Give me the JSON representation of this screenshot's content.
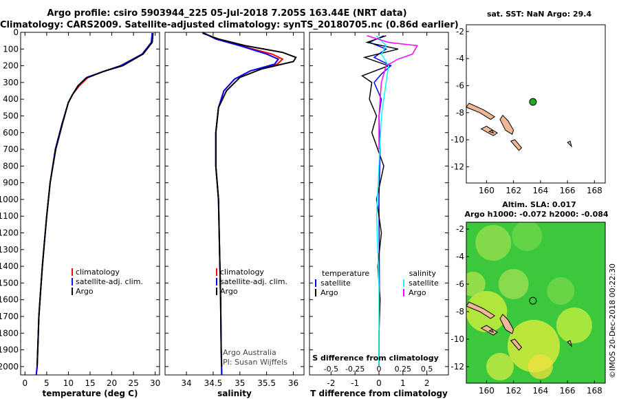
{
  "header": {
    "title_line1": "Argo profile: csiro 5903944_225 05-Jul-2018 7.205S 163.44E (NRT data)",
    "title_line2": "Climatology: CARS2009. Satellite-adjusted climatology: synTS_20180705.nc (0.86d earlier)"
  },
  "credit": "©IMOS 20-Dec-2018 00:22:30",
  "colors": {
    "climatology": "#ff0000",
    "satellite": "#0000ff",
    "argo": "#000000",
    "sat_sal": "#00ffff",
    "argo_sal": "#ff00ff",
    "land": "#f0b894",
    "float": "#22aa22"
  },
  "chart_data": [
    {
      "type": "line",
      "id": "temperature",
      "xlabel": "temperature (deg C)",
      "ylabel": "",
      "xlim": [
        -1,
        31
      ],
      "ylim": [
        2050,
        0
      ],
      "xticks": [
        0,
        5,
        10,
        15,
        20,
        25,
        30
      ],
      "yticks": [
        0,
        100,
        200,
        300,
        400,
        500,
        600,
        700,
        800,
        900,
        1000,
        1100,
        1200,
        1300,
        1400,
        1500,
        1600,
        1700,
        1800,
        1900,
        2000
      ],
      "legend": [
        "climatology",
        "satellite-adj. clim.",
        "Argo"
      ],
      "series": [
        {
          "name": "climatology",
          "x": [
            29.3,
            29.2,
            27,
            22,
            18,
            14.5,
            12.5,
            11,
            10,
            8.5,
            7,
            5.8,
            5,
            4.5,
            4,
            3.6,
            3.2,
            3,
            2.8,
            2.6
          ],
          "y": [
            5,
            60,
            130,
            200,
            235,
            270,
            320,
            370,
            420,
            550,
            700,
            900,
            1100,
            1250,
            1400,
            1550,
            1700,
            1850,
            2000,
            2050
          ]
        },
        {
          "name": "satellite-adj. clim.",
          "x": [
            29.3,
            29.1,
            27,
            22,
            18,
            14.2,
            12.3,
            11,
            10,
            8.5,
            7,
            5.8,
            5,
            4.5,
            4,
            3.6,
            3.2,
            3,
            2.8,
            2.6
          ],
          "y": [
            5,
            60,
            130,
            200,
            235,
            270,
            320,
            370,
            420,
            550,
            700,
            900,
            1100,
            1250,
            1400,
            1550,
            1700,
            1850,
            2000,
            2050
          ]
        },
        {
          "name": "Argo",
          "x": [
            29.5,
            29.3,
            27.2,
            22.5,
            18,
            14,
            12.2,
            11,
            10,
            8.6,
            7.1,
            5.8,
            5,
            4.5,
            4,
            3.6,
            3.2,
            3,
            2.8
          ],
          "y": [
            5,
            60,
            130,
            200,
            235,
            275,
            320,
            370,
            420,
            550,
            700,
            900,
            1100,
            1250,
            1400,
            1550,
            1700,
            1850,
            2000
          ]
        }
      ]
    },
    {
      "type": "line",
      "id": "salinity",
      "xlabel": "salinity",
      "xlim": [
        33.6,
        36.2
      ],
      "ylim": [
        2050,
        0
      ],
      "xticks": [
        34,
        34.5,
        35,
        35.5,
        36
      ],
      "legend": [
        "climatology",
        "satellite-adj. clim.",
        "Argo"
      ],
      "annotation_lines": [
        "Argo Australia",
        "PI: Susan Wijffels"
      ],
      "series": [
        {
          "name": "climatology",
          "x": [
            34.3,
            34.55,
            35,
            35.6,
            35.8,
            35.7,
            35.2,
            34.9,
            34.7,
            34.6,
            34.55,
            34.55,
            34.6,
            34.62,
            34.64,
            34.65,
            34.66
          ],
          "y": [
            0,
            40,
            80,
            130,
            160,
            190,
            230,
            280,
            350,
            450,
            600,
            800,
            1000,
            1300,
            1600,
            1900,
            2050
          ]
        },
        {
          "name": "satellite-adj. clim.",
          "x": [
            34.3,
            34.55,
            35,
            35.5,
            35.72,
            35.65,
            35.2,
            34.9,
            34.7,
            34.6,
            34.55,
            34.55,
            34.6,
            34.62,
            34.64,
            34.65,
            34.66
          ],
          "y": [
            0,
            40,
            80,
            130,
            160,
            190,
            230,
            280,
            350,
            450,
            600,
            800,
            1000,
            1300,
            1600,
            1900,
            2050
          ]
        },
        {
          "name": "Argo",
          "x": [
            34.3,
            34.6,
            35.1,
            35.8,
            36.05,
            36,
            35.4,
            35,
            34.75,
            34.6,
            34.55,
            34.55,
            34.6,
            34.62,
            34.64,
            34.65,
            34.66
          ],
          "y": [
            5,
            40,
            80,
            120,
            150,
            175,
            220,
            270,
            350,
            450,
            600,
            800,
            1000,
            1300,
            1600,
            1900,
            2000
          ]
        }
      ]
    },
    {
      "type": "line",
      "id": "difference",
      "xlabel": "T difference from climatology",
      "xlabel_top": "S difference from climatology",
      "xlim": [
        -2.9,
        2.9
      ],
      "ylim": [
        2050,
        0
      ],
      "xticks": [
        -2,
        -1,
        0,
        1,
        2
      ],
      "s_xticks": [
        "-0.5",
        "-0.25",
        "0",
        "0.25",
        "0.5"
      ],
      "s_xtick_pos": [
        -2,
        -1,
        0,
        1,
        2
      ],
      "legend_left_title": "temperature",
      "legend_right_title": "salinity",
      "legend_left": [
        "satellite",
        "Argo"
      ],
      "legend_right": [
        "satellite",
        "Argo"
      ],
      "series": [
        {
          "name": "temperature satellite",
          "x": [
            0.2,
            -0.4,
            0.3,
            -0.2,
            0.5,
            0.1,
            -0.2,
            0.1,
            0,
            0.05,
            0,
            0.02,
            0
          ],
          "y": [
            20,
            60,
            100,
            150,
            200,
            250,
            300,
            400,
            500,
            700,
            1000,
            1500,
            2000
          ]
        },
        {
          "name": "temperature Argo",
          "x": [
            0.3,
            -0.5,
            0.8,
            -0.6,
            0.4,
            -0.7,
            -0.3,
            -0.4,
            -0.1,
            -0.3,
            0.2,
            -0.1,
            0.1,
            -0.05,
            0.05,
            0,
            0
          ],
          "y": [
            20,
            60,
            100,
            150,
            200,
            260,
            300,
            400,
            500,
            600,
            800,
            1000,
            1200,
            1400,
            1600,
            1800,
            2000
          ]
        },
        {
          "name": "salinity satellite",
          "x": [
            -0.1,
            0.3,
            0.1,
            0.4,
            0.3,
            0.1,
            0,
            -0.1,
            0,
            0
          ],
          "y": [
            20,
            80,
            130,
            200,
            300,
            500,
            800,
            1100,
            1500,
            2000
          ]
        },
        {
          "name": "salinity Argo",
          "x": [
            -0.5,
            0.4,
            1.6,
            1.4,
            0.8,
            0.3,
            0.1,
            0,
            0
          ],
          "y": [
            20,
            60,
            80,
            130,
            160,
            200,
            300,
            500,
            700
          ]
        }
      ]
    },
    {
      "type": "scatter",
      "id": "sst_map",
      "title": "sat. SST: NaN Argo: 29.4",
      "xlim": [
        158.5,
        168.8
      ],
      "ylim": [
        -13.2,
        -1.5
      ],
      "xticks": [
        160,
        162,
        164,
        166,
        168
      ],
      "yticks": [
        -2,
        -4,
        -6,
        -8,
        -10,
        -12
      ],
      "points": [
        {
          "name": "float",
          "x": 163.44,
          "y": -7.205
        }
      ]
    },
    {
      "type": "heatmap",
      "id": "sla_map",
      "title_line1": "Altim. SLA: 0.017",
      "title_line2": "Argo h1000: -0.072 h2000: -0.084",
      "xlim": [
        158.5,
        168.8
      ],
      "ylim": [
        -13.2,
        -1.5
      ],
      "xticks": [
        160,
        162,
        164,
        166,
        168
      ],
      "yticks": [
        -2,
        -4,
        -6,
        -8,
        -10,
        -12
      ],
      "points": [
        {
          "name": "float",
          "x": 163.44,
          "y": -7.205
        }
      ]
    }
  ]
}
